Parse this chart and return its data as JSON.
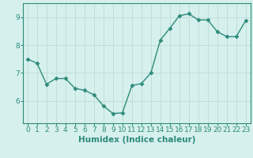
{
  "x": [
    0,
    1,
    2,
    3,
    4,
    5,
    6,
    7,
    8,
    9,
    10,
    11,
    12,
    13,
    14,
    15,
    16,
    17,
    18,
    19,
    20,
    21,
    22,
    23
  ],
  "y": [
    7.5,
    7.35,
    6.6,
    6.8,
    6.8,
    6.45,
    6.38,
    6.22,
    5.82,
    5.55,
    5.57,
    6.55,
    6.62,
    7.0,
    8.18,
    8.6,
    9.05,
    9.12,
    8.9,
    8.9,
    8.48,
    8.3,
    8.3,
    8.88
  ],
  "line_color": "#2d8b7a",
  "marker": "D",
  "marker_size": 2.5,
  "bg_color": "#d6f0ee",
  "grid_color": "#c0deda",
  "axis_color": "#2d8b7a",
  "xlabel": "Humidex (Indice chaleur)",
  "xlabel_fontsize": 7.5,
  "xlim": [
    -0.5,
    23.5
  ],
  "ylim": [
    5.2,
    9.5
  ],
  "yticks": [
    6,
    7,
    8,
    9
  ],
  "xticks": [
    0,
    1,
    2,
    3,
    4,
    5,
    6,
    7,
    8,
    9,
    10,
    11,
    12,
    13,
    14,
    15,
    16,
    17,
    18,
    19,
    20,
    21,
    22,
    23
  ],
  "tick_fontsize": 6.5
}
